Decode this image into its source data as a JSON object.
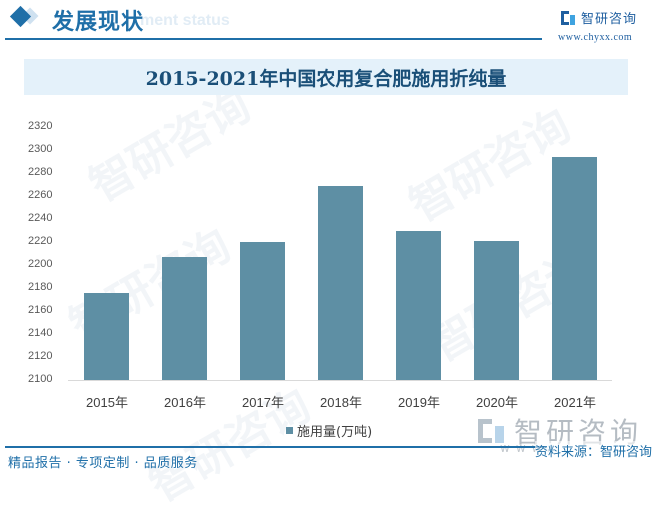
{
  "header": {
    "section_title": "发展现状",
    "section_ghost": "ment status",
    "brand_name": "智研咨询",
    "brand_url": "www.chyxx.com"
  },
  "chart_title": "2015-2021年中国农用复合肥施用折纯量",
  "chart_data": {
    "type": "bar",
    "title": "2015-2021年中国农用复合肥施用折纯量",
    "xlabel": "",
    "ylabel": "",
    "categories": [
      "2015年",
      "2016年",
      "2017年",
      "2018年",
      "2019年",
      "2020年",
      "2021年"
    ],
    "series": [
      {
        "name": "施用量(万吨)",
        "values": [
          2176,
          2207,
          2220,
          2269,
          2230,
          2221,
          2294
        ],
        "color": "#5e8fa4"
      }
    ],
    "ylim": [
      2100,
      2320
    ],
    "yticks": [
      2320,
      2300,
      2280,
      2260,
      2240,
      2220,
      2200,
      2180,
      2160,
      2140,
      2120,
      2100
    ],
    "grid": false,
    "legend_position": "bottom"
  },
  "legend": {
    "label": "施用量(万吨)"
  },
  "footer": {
    "tagline": "精品报告 · 专项定制 · 品质服务",
    "watermark_brand": "智研咨询",
    "watermark_url": "www.",
    "source": "资料来源：智研咨询"
  },
  "colors": {
    "accent": "#1f6fa8",
    "bar": "#5e8fa4",
    "title_bg": "#e4f1fa"
  }
}
